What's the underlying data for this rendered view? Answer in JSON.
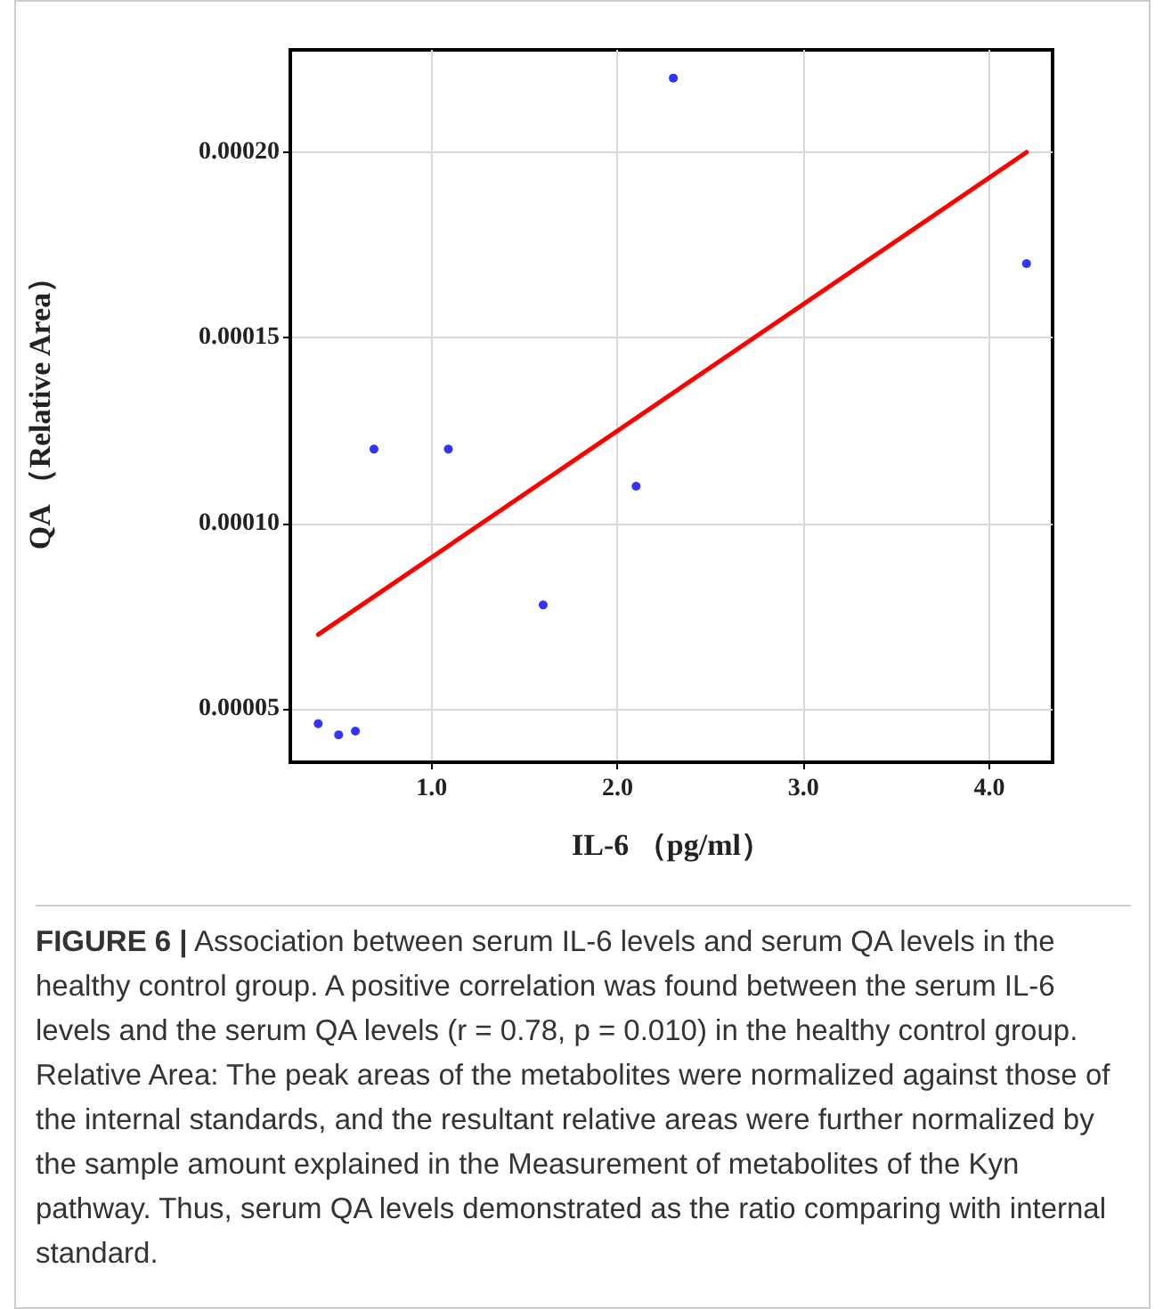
{
  "chart_data": {
    "type": "scatter",
    "xlabel": "IL-6 （pg/ml）",
    "ylabel": "QA （Relative Area）",
    "annotations": [
      "FIGURE 6 |",
      "Association between serum IL-6 levels and serum QA levels in the healthy control group. A positive correlation was found between the serum IL-6 levels and the serum QA levels (r = 0.78, p = 0.010) in the healthy control group. Relative Area: The peak areas of the metabolites were normalized against those of the internal standards, and the resultant relative areas were further normalized by the sample amount explained in the Measurement of metabolites of the Kyn pathway. Thus, serum QA levels demonstrated as the ratio comparing with internal standard."
    ],
    "series": [
      {
        "color": "#0000ff",
        "marker": "circle",
        "x": [
          0.39,
          0.5,
          0.59,
          0.69,
          1.09,
          1.6,
          2.1,
          2.3,
          4.2
        ],
        "values": [
          4.6e-05,
          4.3e-05,
          4.4e-05,
          0.00012,
          0.00012,
          7.8e-05,
          0.00011,
          0.00022,
          0.00017
        ]
      },
      {
        "type": "line",
        "color": "#ff0000",
        "marker": "none",
        "line_style": "solid",
        "x": [
          0.39,
          4.2
        ],
        "values": [
          7e-05,
          0.0002
        ]
      }
    ],
    "xlim": [
      0.24,
      4.34
    ],
    "ylim": [
      3.56e-05,
      0.0002276
    ],
    "xticks": [
      {
        "value": 1,
        "label": "1.0"
      },
      {
        "value": 2,
        "label": "2.0"
      },
      {
        "value": 3,
        "label": "3.0"
      },
      {
        "value": 4,
        "label": "4.0"
      }
    ],
    "yticks": [
      {
        "value": 5e-05,
        "label": "0.00005"
      },
      {
        "value": 0.0001,
        "label": "0.00010"
      },
      {
        "value": 0.00015,
        "label": "0.00015"
      },
      {
        "value": 0.0002,
        "label": "0.00020"
      }
    ],
    "grid": true
  }
}
